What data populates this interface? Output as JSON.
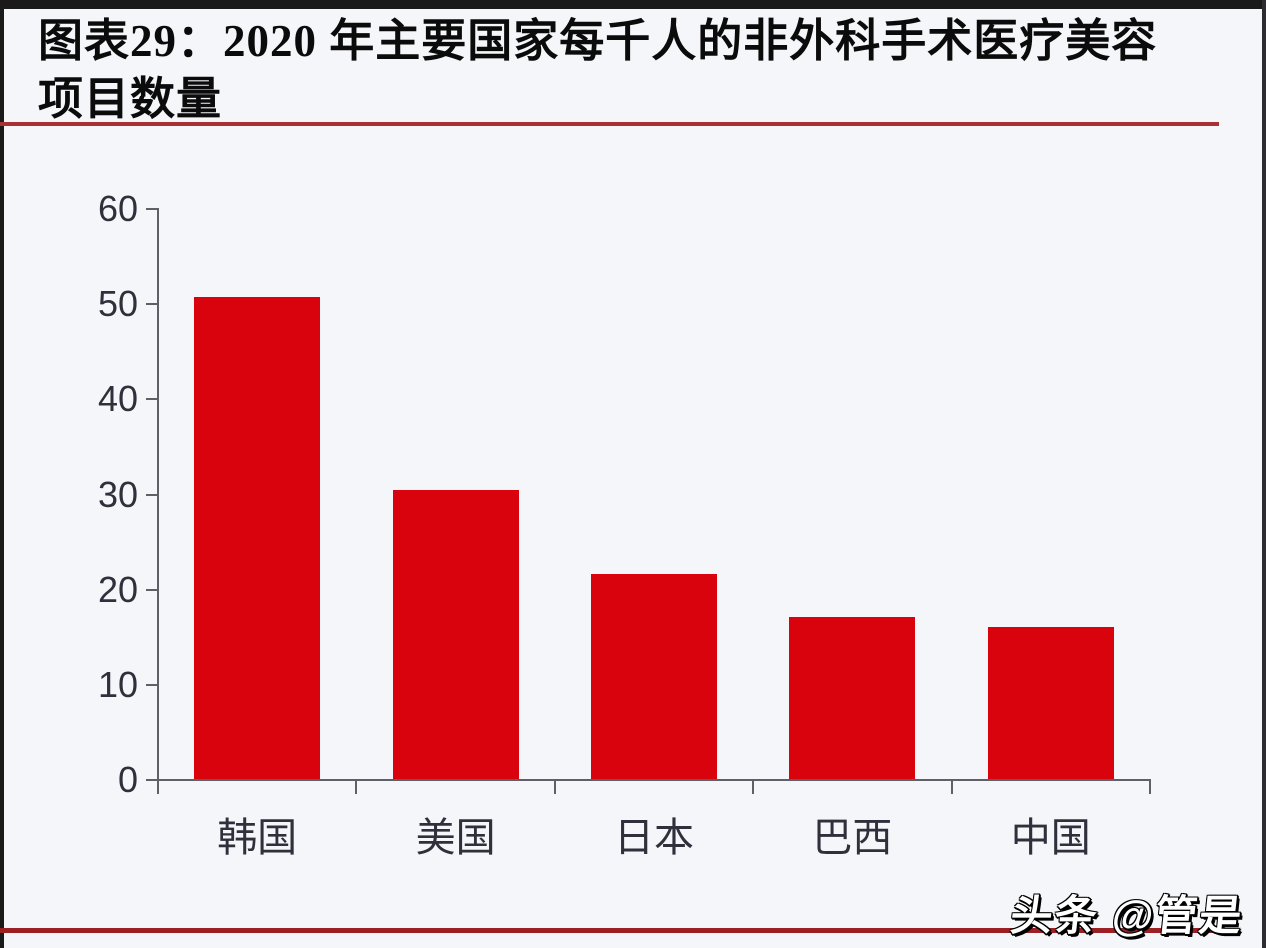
{
  "header": {
    "title_line1": "图表29：2020 年主要国家每千人的非外科手术医疗美容",
    "title_line2": "项目数量"
  },
  "footer": {
    "watermark": "头条 @管是"
  },
  "colors": {
    "background": "#f5f6f9",
    "frame_edge": "#1a1a1a",
    "title_text": "#0b0b0b",
    "divider_red": "#a93134",
    "bottom_line_red": "#9c2023",
    "axis_line": "#5f5f68",
    "axis_label": "#30303c",
    "bar_fill": "#d9030d"
  },
  "chart_data": {
    "type": "bar",
    "title": "2020 年主要国家每千人的非外科手术医疗美容项目数量",
    "categories": [
      "韩国",
      "美国",
      "日本",
      "巴西",
      "中国"
    ],
    "values": [
      50.6,
      30.4,
      21.5,
      17.0,
      16.0
    ],
    "xlabel": "",
    "ylabel": "",
    "ylim": [
      0,
      60
    ],
    "yticks": [
      0,
      10,
      20,
      30,
      40,
      50,
      60
    ],
    "grid": false,
    "legend_position": "none",
    "bar_color": "#d9030d"
  }
}
